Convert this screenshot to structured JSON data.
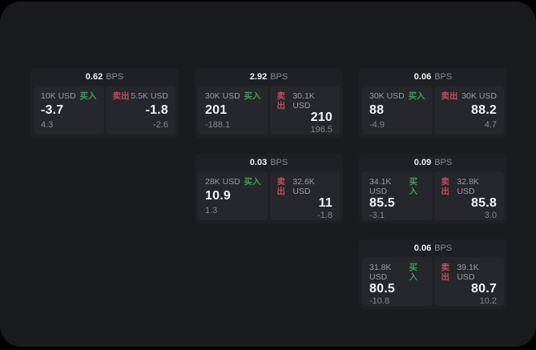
{
  "labels": {
    "bps_unit": "BPS",
    "buy": "买入",
    "sell": "卖出"
  },
  "colors": {
    "window_bg": "#1a1b1d",
    "card_bg": "#1f2023",
    "panel_bg": "#26272a",
    "buy_green": "#3e9e5b",
    "sell_red": "#c24d60",
    "value_white": "#f2f3f5",
    "muted_gray": "#9a9da2"
  },
  "cards": [
    {
      "bps": "0.62",
      "buy": {
        "size": "10K USD",
        "price": "-3.7",
        "sub": "4.3"
      },
      "sell": {
        "size": "5.5K USD",
        "price": "-1.8",
        "sub": "-2.6"
      }
    },
    {
      "bps": "2.92",
      "buy": {
        "size": "30K USD",
        "price": "201",
        "sub": "-188.1"
      },
      "sell": {
        "size": "30.1K USD",
        "price": "210",
        "sub": "196.5"
      }
    },
    {
      "bps": "0.06",
      "buy": {
        "size": "30K USD",
        "price": "88",
        "sub": "-4.9"
      },
      "sell": {
        "size": "30K USD",
        "price": "88.2",
        "sub": "4.7"
      }
    },
    {
      "bps": "0.03",
      "buy": {
        "size": "28K USD",
        "price": "10.9",
        "sub": "1.3"
      },
      "sell": {
        "size": "32.6K USD",
        "price": "11",
        "sub": "-1.8"
      }
    },
    {
      "bps": "0.09",
      "buy": {
        "size": "34.1K USD",
        "price": "85.5",
        "sub": "-3.1"
      },
      "sell": {
        "size": "32.8K USD",
        "price": "85.8",
        "sub": "3.0"
      }
    },
    {
      "bps": "0.06",
      "buy": {
        "size": "31.8K USD",
        "price": "80.5",
        "sub": "-10.8"
      },
      "sell": {
        "size": "39.1K USD",
        "price": "80.7",
        "sub": "10.2"
      }
    }
  ]
}
